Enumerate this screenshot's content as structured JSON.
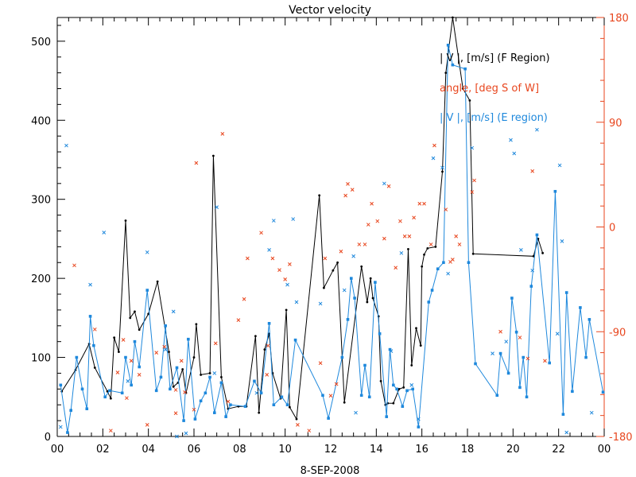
{
  "chart_data": {
    "type": "line",
    "title": "Vector velocity",
    "xlabel": "8-SEP-2008",
    "xlim": [
      0,
      24
    ],
    "ylim_left": [
      0,
      530
    ],
    "ylim_right": [
      -180,
      180
    ],
    "x_ticks": [
      "00",
      "02",
      "04",
      "06",
      "08",
      "10",
      "12",
      "14",
      "16",
      "18",
      "20",
      "22",
      "00"
    ],
    "y_ticks_left": [
      0,
      100,
      200,
      300,
      400,
      500
    ],
    "y_ticks_right": [
      "-180",
      "-90",
      "0",
      "90",
      "180"
    ],
    "y_ticks_right_values": [
      -180,
      -90,
      0,
      90,
      180
    ],
    "colors": {
      "f_region": "#000000",
      "angle": "#e8461e",
      "e_region": "#1e88dc",
      "axis": "#000000",
      "right_axis": "#e8461e"
    },
    "legend": [
      {
        "label": "| V |, [m/s] (F Region)",
        "color": "#000000"
      },
      {
        "label": "angle, [deg S of W]",
        "color": "#e8461e"
      },
      {
        "label": "| V |, [m/s] (E region)",
        "color": "#1e88dc"
      }
    ],
    "series": [
      {
        "name": "| V |, [m/s] (F Region)",
        "axis": "left",
        "marker": "dot",
        "points": [
          [
            0.2,
            57
          ],
          [
            0.8,
            84
          ],
          [
            1.4,
            117
          ],
          [
            1.65,
            87
          ],
          [
            2.2,
            57
          ],
          [
            2.35,
            48
          ],
          [
            2.5,
            125
          ],
          [
            2.7,
            107
          ],
          [
            3.0,
            273
          ],
          [
            3.2,
            150
          ],
          [
            3.4,
            158
          ],
          [
            3.6,
            135
          ],
          [
            4.0,
            155
          ],
          [
            4.4,
            196
          ],
          [
            4.9,
            107
          ],
          [
            5.1,
            63
          ],
          [
            5.3,
            68
          ],
          [
            5.5,
            85
          ],
          [
            5.65,
            55
          ],
          [
            6.0,
            100
          ],
          [
            6.1,
            142
          ],
          [
            6.3,
            78
          ],
          [
            6.7,
            80
          ],
          [
            6.85,
            355
          ],
          [
            7.2,
            75
          ],
          [
            7.5,
            35
          ],
          [
            7.95,
            38
          ],
          [
            8.3,
            38
          ],
          [
            8.7,
            127
          ],
          [
            8.85,
            30
          ],
          [
            9.1,
            110
          ],
          [
            9.3,
            130
          ],
          [
            9.45,
            80
          ],
          [
            9.8,
            48
          ],
          [
            10.05,
            160
          ],
          [
            10.2,
            37
          ],
          [
            10.5,
            22
          ],
          [
            11.5,
            305
          ],
          [
            11.7,
            188
          ],
          [
            12.1,
            210
          ],
          [
            12.3,
            220
          ],
          [
            12.6,
            43
          ],
          [
            13.35,
            215
          ],
          [
            13.6,
            170
          ],
          [
            13.75,
            200
          ],
          [
            13.85,
            175
          ],
          [
            14.1,
            152
          ],
          [
            14.2,
            70
          ],
          [
            14.4,
            40
          ],
          [
            14.5,
            42
          ],
          [
            14.75,
            42
          ],
          [
            15.0,
            60
          ],
          [
            15.2,
            62
          ],
          [
            15.4,
            237
          ],
          [
            15.55,
            90
          ],
          [
            15.75,
            137
          ],
          [
            15.95,
            115
          ],
          [
            16.0,
            215
          ],
          [
            16.1,
            230
          ],
          [
            16.25,
            238
          ],
          [
            16.6,
            240
          ],
          [
            16.9,
            335
          ],
          [
            17.05,
            460
          ],
          [
            17.35,
            530
          ],
          [
            17.8,
            440
          ],
          [
            18.1,
            425
          ],
          [
            18.25,
            231
          ],
          [
            20.9,
            228
          ],
          [
            21.1,
            250
          ],
          [
            21.3,
            232
          ]
        ]
      },
      {
        "name": "| V |, [m/s] (E region)",
        "axis": "left",
        "marker": "square",
        "points": [
          [
            0.15,
            65
          ],
          [
            0.45,
            5
          ],
          [
            0.6,
            33
          ],
          [
            0.85,
            100
          ],
          [
            1.1,
            60
          ],
          [
            1.3,
            35
          ],
          [
            1.45,
            152
          ],
          [
            1.6,
            115
          ],
          [
            2.1,
            50
          ],
          [
            2.3,
            58
          ],
          [
            2.85,
            55
          ],
          [
            3.0,
            100
          ],
          [
            3.25,
            65
          ],
          [
            3.4,
            120
          ],
          [
            3.6,
            88
          ],
          [
            3.95,
            185
          ],
          [
            4.35,
            58
          ],
          [
            4.55,
            75
          ],
          [
            4.75,
            140
          ],
          [
            4.95,
            60
          ],
          [
            5.25,
            87
          ],
          [
            5.55,
            20
          ],
          [
            5.75,
            123
          ],
          [
            6.05,
            22
          ],
          [
            6.3,
            45
          ],
          [
            6.5,
            55
          ],
          [
            6.7,
            75
          ],
          [
            6.9,
            30
          ],
          [
            7.2,
            68
          ],
          [
            7.4,
            25
          ],
          [
            7.6,
            40
          ],
          [
            8.25,
            38
          ],
          [
            8.65,
            70
          ],
          [
            8.95,
            55
          ],
          [
            9.3,
            143
          ],
          [
            9.5,
            40
          ],
          [
            9.85,
            50
          ],
          [
            10.1,
            40
          ],
          [
            10.45,
            122
          ],
          [
            11.65,
            52
          ],
          [
            11.9,
            23
          ],
          [
            12.5,
            100
          ],
          [
            12.75,
            148
          ],
          [
            12.9,
            200
          ],
          [
            13.05,
            175
          ],
          [
            13.35,
            52
          ],
          [
            13.5,
            90
          ],
          [
            13.7,
            50
          ],
          [
            13.95,
            195
          ],
          [
            14.15,
            130
          ],
          [
            14.45,
            25
          ],
          [
            14.6,
            110
          ],
          [
            14.75,
            65
          ],
          [
            14.9,
            60
          ],
          [
            15.15,
            38
          ],
          [
            15.35,
            58
          ],
          [
            15.6,
            60
          ],
          [
            15.85,
            12
          ],
          [
            16.3,
            170
          ],
          [
            16.45,
            185
          ],
          [
            16.7,
            212
          ],
          [
            16.95,
            220
          ],
          [
            17.15,
            495
          ],
          [
            17.35,
            470
          ],
          [
            17.9,
            465
          ],
          [
            18.05,
            220
          ],
          [
            18.35,
            92
          ],
          [
            19.3,
            52
          ],
          [
            19.45,
            105
          ],
          [
            19.8,
            80
          ],
          [
            19.95,
            175
          ],
          [
            20.15,
            132
          ],
          [
            20.3,
            62
          ],
          [
            20.45,
            100
          ],
          [
            20.6,
            50
          ],
          [
            20.8,
            190
          ],
          [
            21.05,
            255
          ],
          [
            21.6,
            93
          ],
          [
            21.85,
            310
          ],
          [
            22.2,
            28
          ],
          [
            22.35,
            182
          ],
          [
            22.6,
            57
          ],
          [
            22.95,
            163
          ],
          [
            23.2,
            100
          ],
          [
            23.35,
            148
          ],
          [
            23.95,
            56
          ]
        ]
      },
      {
        "name": "angle, [deg S of W]",
        "axis": "right",
        "marker": "x",
        "points": [
          [
            0.75,
            -33
          ],
          [
            1.65,
            -88
          ],
          [
            2.35,
            -175
          ],
          [
            2.65,
            -125
          ],
          [
            2.9,
            -97
          ],
          [
            3.05,
            -147
          ],
          [
            3.25,
            -115
          ],
          [
            3.6,
            -127
          ],
          [
            3.95,
            -170
          ],
          [
            4.35,
            -108
          ],
          [
            4.7,
            -103
          ],
          [
            5.2,
            -140
          ],
          [
            5.2,
            -160
          ],
          [
            5.45,
            -115
          ],
          [
            5.6,
            -142
          ],
          [
            6.0,
            -157
          ],
          [
            6.1,
            55
          ],
          [
            6.95,
            -100
          ],
          [
            7.25,
            80
          ],
          [
            7.5,
            -150
          ],
          [
            7.95,
            -80
          ],
          [
            8.2,
            -62
          ],
          [
            8.35,
            -27
          ],
          [
            8.95,
            -5
          ],
          [
            9.2,
            -127
          ],
          [
            9.25,
            -102
          ],
          [
            9.45,
            -27
          ],
          [
            9.75,
            -37
          ],
          [
            10.0,
            -45
          ],
          [
            10.2,
            -32
          ],
          [
            10.55,
            -170
          ],
          [
            11.05,
            -175
          ],
          [
            11.55,
            -117
          ],
          [
            11.75,
            -27
          ],
          [
            12.0,
            -145
          ],
          [
            12.25,
            -135
          ],
          [
            12.45,
            -21
          ],
          [
            12.65,
            27
          ],
          [
            12.75,
            37
          ],
          [
            12.95,
            32
          ],
          [
            13.25,
            -15
          ],
          [
            13.5,
            -15
          ],
          [
            13.65,
            2
          ],
          [
            13.8,
            20
          ],
          [
            14.05,
            5
          ],
          [
            14.35,
            -10
          ],
          [
            14.55,
            35
          ],
          [
            14.85,
            -35
          ],
          [
            15.05,
            5
          ],
          [
            15.25,
            -8
          ],
          [
            15.45,
            -8
          ],
          [
            15.65,
            8
          ],
          [
            15.9,
            20
          ],
          [
            16.1,
            20
          ],
          [
            16.4,
            -15
          ],
          [
            16.55,
            70
          ],
          [
            17.05,
            15
          ],
          [
            17.25,
            -30
          ],
          [
            17.35,
            -28
          ],
          [
            17.5,
            -8
          ],
          [
            17.65,
            -15
          ],
          [
            18.2,
            30
          ],
          [
            18.3,
            40
          ],
          [
            19.45,
            -90
          ],
          [
            20.3,
            -95
          ],
          [
            20.65,
            -113
          ],
          [
            20.85,
            48
          ],
          [
            21.4,
            -115
          ]
        ]
      },
      {
        "name": "e-region-x-markers",
        "axis": "left",
        "marker": "x",
        "points": [
          [
            0.15,
            12
          ],
          [
            0.4,
            368
          ],
          [
            1.45,
            192
          ],
          [
            2.05,
            258
          ],
          [
            3.1,
            70
          ],
          [
            3.95,
            233
          ],
          [
            4.75,
            110
          ],
          [
            5.1,
            158
          ],
          [
            5.25,
            0
          ],
          [
            5.65,
            4
          ],
          [
            6.9,
            80
          ],
          [
            7.0,
            290
          ],
          [
            8.75,
            55
          ],
          [
            9.3,
            236
          ],
          [
            9.5,
            273
          ],
          [
            10.1,
            192
          ],
          [
            10.35,
            275
          ],
          [
            10.5,
            170
          ],
          [
            11.55,
            168
          ],
          [
            12.6,
            185
          ],
          [
            13.0,
            228
          ],
          [
            13.1,
            30
          ],
          [
            14.35,
            320
          ],
          [
            14.65,
            108
          ],
          [
            15.1,
            232
          ],
          [
            15.55,
            65
          ],
          [
            15.85,
            22
          ],
          [
            16.5,
            352
          ],
          [
            16.9,
            340
          ],
          [
            17.15,
            206
          ],
          [
            18.2,
            365
          ],
          [
            19.1,
            105
          ],
          [
            19.7,
            120
          ],
          [
            19.9,
            375
          ],
          [
            20.05,
            358
          ],
          [
            20.35,
            236
          ],
          [
            20.85,
            210
          ],
          [
            21.05,
            388
          ],
          [
            21.95,
            130
          ],
          [
            22.05,
            343
          ],
          [
            22.15,
            247
          ],
          [
            22.35,
            5
          ],
          [
            23.45,
            30
          ]
        ]
      }
    ]
  }
}
